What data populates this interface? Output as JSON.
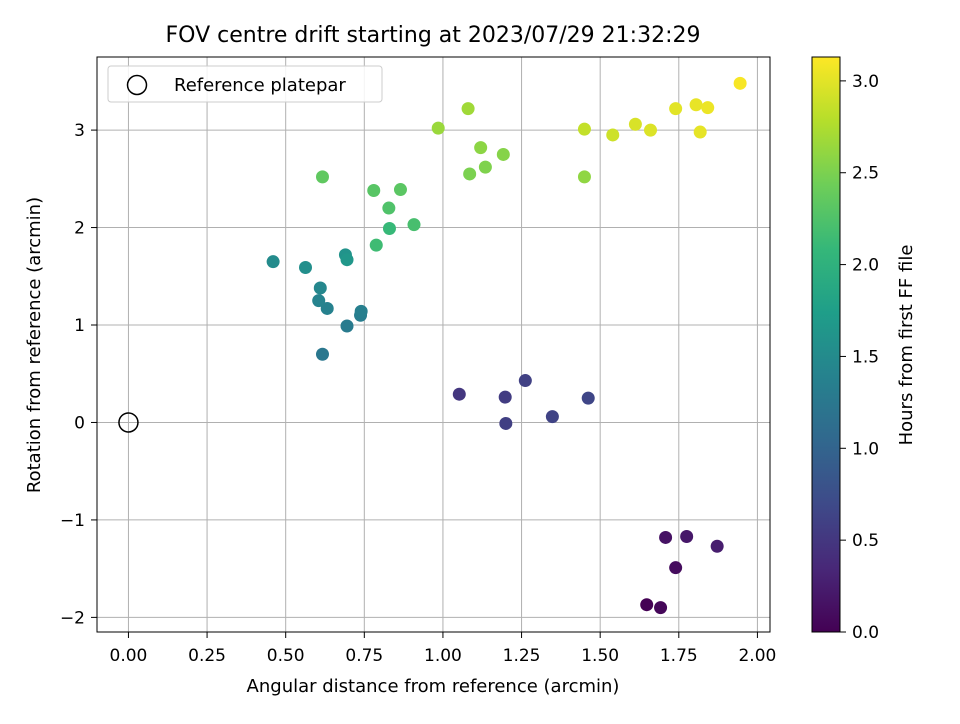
{
  "chart_data": {
    "type": "scatter",
    "title": "FOV centre drift starting at 2023/07/29 21:32:29",
    "xlabel": "Angular distance from reference (arcmin)",
    "ylabel": "Rotation from reference (arcmin)",
    "xlim": [
      -0.1,
      2.04
    ],
    "ylim": [
      -2.15,
      3.75
    ],
    "xticks": [
      0.0,
      0.25,
      0.5,
      0.75,
      1.0,
      1.25,
      1.5,
      1.75,
      2.0
    ],
    "xtick_labels": [
      "0.00",
      "0.25",
      "0.50",
      "0.75",
      "1.00",
      "1.25",
      "1.50",
      "1.75",
      "2.00"
    ],
    "yticks": [
      -2,
      -1,
      0,
      1,
      2,
      3
    ],
    "ytick_labels": [
      "−2",
      "−1",
      "0",
      "1",
      "2",
      "3"
    ],
    "grid": true,
    "legend": {
      "placement": "upper-left",
      "entries": [
        "Reference platepar"
      ]
    },
    "reference_point": {
      "x": 0.0,
      "y": 0.0,
      "marker": "open-circle",
      "color": "#000000"
    },
    "colorbar": {
      "label": "Hours from first FF file",
      "colormap": "viridis",
      "range": [
        0.0,
        3.13
      ],
      "ticks": [
        0.0,
        0.5,
        1.0,
        1.5,
        2.0,
        2.5,
        3.0
      ],
      "tick_labels": [
        "0.0",
        "0.5",
        "1.0",
        "1.5",
        "2.0",
        "2.5",
        "3.0"
      ]
    },
    "points": [
      {
        "x": 1.648,
        "y": -1.87,
        "hours": 0.0
      },
      {
        "x": 1.692,
        "y": -1.9,
        "hours": 0.05
      },
      {
        "x": 1.74,
        "y": -1.49,
        "hours": 0.1
      },
      {
        "x": 1.708,
        "y": -1.18,
        "hours": 0.15
      },
      {
        "x": 1.775,
        "y": -1.17,
        "hours": 0.2
      },
      {
        "x": 1.872,
        "y": -1.27,
        "hours": 0.25
      },
      {
        "x": 1.052,
        "y": 0.29,
        "hours": 0.5
      },
      {
        "x": 1.198,
        "y": 0.26,
        "hours": 0.55
      },
      {
        "x": 1.2,
        "y": -0.01,
        "hours": 0.58
      },
      {
        "x": 1.262,
        "y": 0.43,
        "hours": 0.6
      },
      {
        "x": 1.348,
        "y": 0.06,
        "hours": 0.62
      },
      {
        "x": 1.462,
        "y": 0.25,
        "hours": 0.65
      },
      {
        "x": 0.617,
        "y": 0.7,
        "hours": 1.25
      },
      {
        "x": 0.695,
        "y": 0.99,
        "hours": 1.3
      },
      {
        "x": 0.738,
        "y": 1.1,
        "hours": 1.32
      },
      {
        "x": 0.74,
        "y": 1.14,
        "hours": 1.35
      },
      {
        "x": 0.632,
        "y": 1.17,
        "hours": 1.38
      },
      {
        "x": 0.605,
        "y": 1.25,
        "hours": 1.4
      },
      {
        "x": 0.61,
        "y": 1.38,
        "hours": 1.45
      },
      {
        "x": 0.46,
        "y": 1.65,
        "hours": 1.5
      },
      {
        "x": 0.563,
        "y": 1.59,
        "hours": 1.55
      },
      {
        "x": 0.69,
        "y": 1.72,
        "hours": 1.6
      },
      {
        "x": 0.695,
        "y": 1.67,
        "hours": 1.65
      },
      {
        "x": 0.83,
        "y": 1.99,
        "hours": 2.1
      },
      {
        "x": 0.788,
        "y": 1.82,
        "hours": 2.15
      },
      {
        "x": 0.908,
        "y": 2.03,
        "hours": 2.2
      },
      {
        "x": 0.828,
        "y": 2.2,
        "hours": 2.25
      },
      {
        "x": 0.78,
        "y": 2.38,
        "hours": 2.3
      },
      {
        "x": 0.865,
        "y": 2.39,
        "hours": 2.32
      },
      {
        "x": 0.617,
        "y": 2.52,
        "hours": 2.35
      },
      {
        "x": 1.085,
        "y": 2.55,
        "hours": 2.5
      },
      {
        "x": 1.135,
        "y": 2.62,
        "hours": 2.52
      },
      {
        "x": 1.192,
        "y": 2.75,
        "hours": 2.55
      },
      {
        "x": 1.12,
        "y": 2.82,
        "hours": 2.58
      },
      {
        "x": 0.985,
        "y": 3.02,
        "hours": 2.65
      },
      {
        "x": 1.08,
        "y": 3.22,
        "hours": 2.68
      },
      {
        "x": 1.45,
        "y": 2.52,
        "hours": 2.6
      },
      {
        "x": 1.45,
        "y": 3.01,
        "hours": 2.85
      },
      {
        "x": 1.54,
        "y": 2.95,
        "hours": 2.9
      },
      {
        "x": 1.612,
        "y": 3.06,
        "hours": 2.95
      },
      {
        "x": 1.66,
        "y": 3.0,
        "hours": 2.97
      },
      {
        "x": 1.74,
        "y": 3.22,
        "hours": 3.0
      },
      {
        "x": 1.805,
        "y": 3.26,
        "hours": 3.03
      },
      {
        "x": 1.842,
        "y": 3.23,
        "hours": 3.05
      },
      {
        "x": 1.818,
        "y": 2.98,
        "hours": 3.02
      },
      {
        "x": 1.945,
        "y": 3.48,
        "hours": 3.1
      }
    ]
  }
}
